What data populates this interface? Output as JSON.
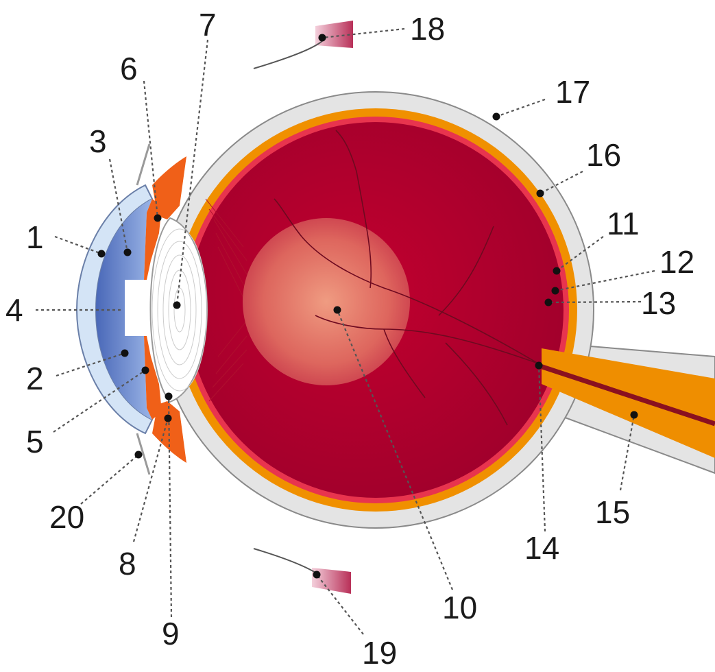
{
  "diagram": {
    "labels": [
      {
        "id": "1",
        "text": "1"
      },
      {
        "id": "2",
        "text": "2"
      },
      {
        "id": "3",
        "text": "3"
      },
      {
        "id": "4",
        "text": "4"
      },
      {
        "id": "5",
        "text": "5"
      },
      {
        "id": "6",
        "text": "6"
      },
      {
        "id": "7",
        "text": "7"
      },
      {
        "id": "8",
        "text": "8"
      },
      {
        "id": "9",
        "text": "9"
      },
      {
        "id": "10",
        "text": "10"
      },
      {
        "id": "11",
        "text": "11"
      },
      {
        "id": "12",
        "text": "12"
      },
      {
        "id": "13",
        "text": "13"
      },
      {
        "id": "14",
        "text": "14"
      },
      {
        "id": "15",
        "text": "15"
      },
      {
        "id": "16",
        "text": "16"
      },
      {
        "id": "17",
        "text": "17"
      },
      {
        "id": "18",
        "text": "18"
      },
      {
        "id": "19",
        "text": "19"
      },
      {
        "id": "20",
        "text": "20"
      }
    ],
    "colors": {
      "sclera": "#e4e4e4",
      "sclera_outline": "#8a8a8a",
      "choroid": "#f09000",
      "retina": "#e8344e",
      "vitreous": "#b00030",
      "macula": "#f0a080",
      "cornea": "#d4e4f6",
      "aqueous": "#5a7cc8",
      "iris": "#f06018",
      "lens": "#ffffff",
      "optic_nerve": "#ef8e00",
      "muscle": "#c04060"
    }
  }
}
